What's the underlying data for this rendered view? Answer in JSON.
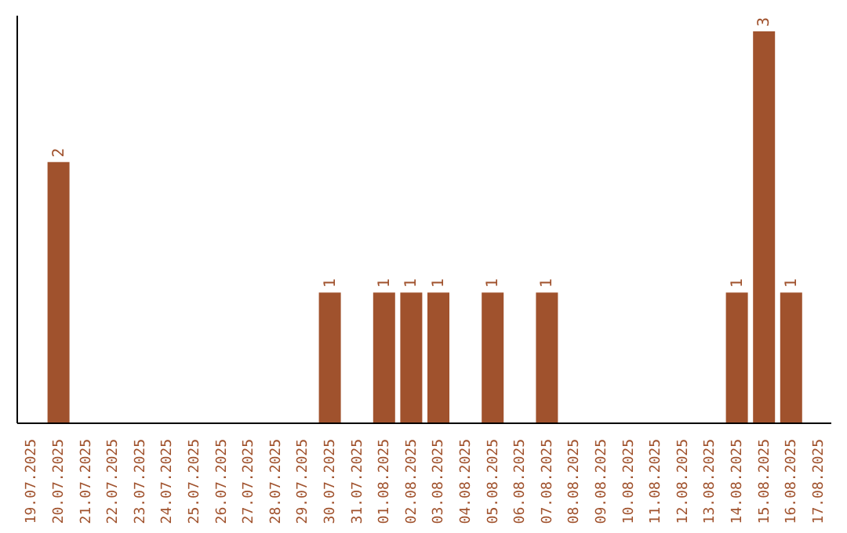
{
  "chart_data": {
    "type": "bar",
    "categories": [
      "19.07.2025",
      "20.07.2025",
      "21.07.2025",
      "22.07.2025",
      "23.07.2025",
      "24.07.2025",
      "25.07.2025",
      "26.07.2025",
      "27.07.2025",
      "28.07.2025",
      "29.07.2025",
      "30.07.2025",
      "31.07.2025",
      "01.08.2025",
      "02.08.2025",
      "03.08.2025",
      "04.08.2025",
      "05.08.2025",
      "06.08.2025",
      "07.08.2025",
      "08.08.2025",
      "09.08.2025",
      "10.08.2025",
      "11.08.2025",
      "12.08.2025",
      "13.08.2025",
      "14.08.2025",
      "15.08.2025",
      "16.08.2025",
      "17.08.2025"
    ],
    "values": [
      null,
      2,
      null,
      null,
      null,
      null,
      null,
      null,
      null,
      null,
      null,
      1,
      null,
      1,
      1,
      1,
      null,
      1,
      null,
      1,
      null,
      null,
      null,
      null,
      null,
      null,
      1,
      3,
      1,
      null
    ],
    "color": "#a0522d",
    "data_labels": true,
    "tick_labels": "x"
  }
}
